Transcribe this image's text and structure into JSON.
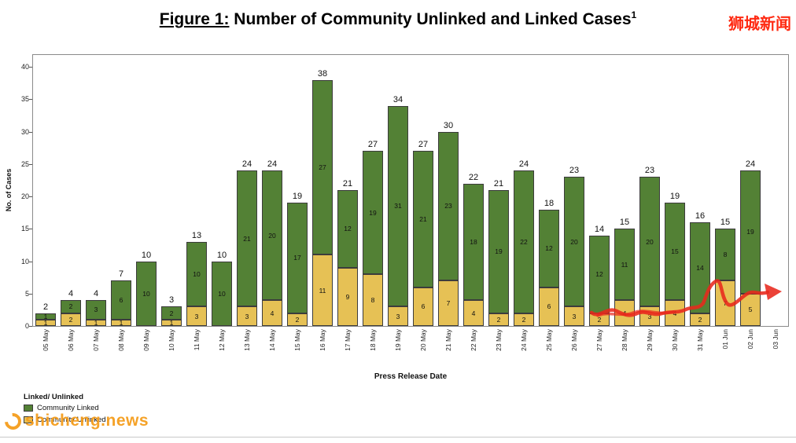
{
  "title": {
    "figure_label": "Figure 1:",
    "text": " Number of Community Unlinked and Linked Cases",
    "superscript": "1"
  },
  "watermarks": {
    "top_right": "狮城新闻",
    "bottom_left": "shicheng.news"
  },
  "chart_data": {
    "type": "bar",
    "stacked": true,
    "xlabel": "Press Release Date",
    "ylabel": "No. of Cases",
    "ylim": [
      0,
      40
    ],
    "yticks": [
      0,
      5,
      10,
      15,
      20,
      25,
      30,
      35,
      40
    ],
    "grid": false,
    "legend_title": "Linked/ Unlinked",
    "legend_position": "bottom-left",
    "series_meta": [
      {
        "name": "Community Linked",
        "color": "#538135"
      },
      {
        "name": "Community Unlinked",
        "color": "#e6c155"
      }
    ],
    "categories": [
      "05 May",
      "06 May",
      "07 May",
      "08 May",
      "09 May",
      "10 May",
      "11 May",
      "12 May",
      "13 May",
      "14 May",
      "15 May",
      "16 May",
      "17 May",
      "18 May",
      "19 May",
      "20 May",
      "21 May",
      "22 May",
      "23 May",
      "24 May",
      "25 May",
      "26 May",
      "27 May",
      "28 May",
      "29 May",
      "30 May",
      "31 May",
      "01 Jun",
      "02 Jun",
      "03 Jun"
    ],
    "series": [
      {
        "name": "Community Linked",
        "values": [
          1,
          2,
          3,
          6,
          10,
          2,
          10,
          10,
          21,
          20,
          17,
          27,
          12,
          19,
          31,
          21,
          23,
          18,
          19,
          22,
          12,
          20,
          12,
          11,
          20,
          15,
          14,
          8,
          19,
          null
        ]
      },
      {
        "name": "Community Unlinked",
        "values": [
          1,
          2,
          1,
          1,
          0,
          1,
          3,
          0,
          3,
          4,
          2,
          11,
          9,
          8,
          3,
          6,
          7,
          4,
          2,
          2,
          6,
          3,
          2,
          4,
          3,
          4,
          2,
          7,
          5,
          null
        ]
      }
    ],
    "totals": [
      2,
      4,
      4,
      7,
      10,
      3,
      13,
      10,
      24,
      24,
      19,
      38,
      21,
      27,
      34,
      27,
      30,
      22,
      21,
      24,
      18,
      23,
      14,
      15,
      23,
      19,
      16,
      15,
      24,
      null
    ],
    "annotation": {
      "type": "hand-drawn scribble arrow",
      "color": "#e8281c",
      "region": "traced over unlinked (yellow) segments of the most recent bars, arrow pointing right"
    }
  }
}
